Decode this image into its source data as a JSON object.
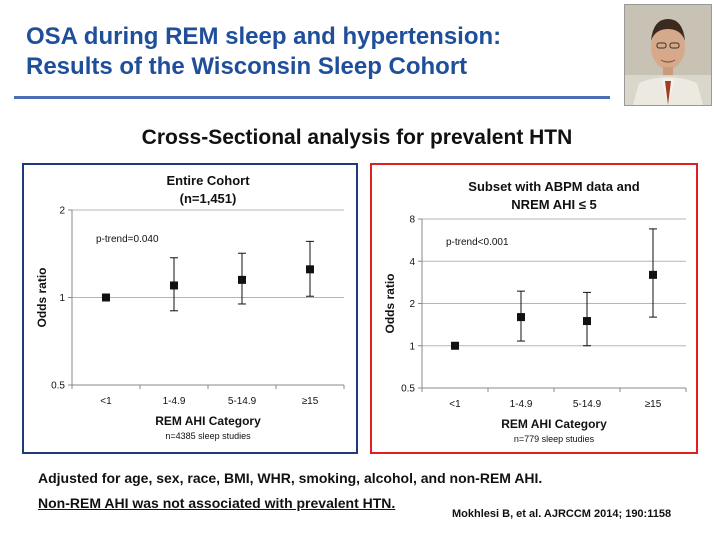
{
  "slide": {
    "title_line1": "OSA during REM sleep and hypertension:",
    "title_line2": "Results of the Wisconsin Sleep Cohort",
    "subtitle": "Cross-Sectional analysis for prevalent HTN",
    "note1": "Adjusted for age, sex, race, BMI, WHR, smoking, alcohol, and non-REM AHI.",
    "note2": "Non-REM AHI was not associated with prevalent HTN.",
    "citation": "Mokhlesi B, et al. AJRCCM 2014; 190:1158"
  },
  "chart_data": [
    {
      "type": "scatter",
      "title_lines": [
        "Entire Cohort",
        "(n=1,451)"
      ],
      "xlabel": "REM AHI Category",
      "ylabel": "Odds ratio",
      "footnote": "n=4385 sleep studies",
      "annotation": "p-trend=0.040",
      "categories": [
        "<1",
        "1-4.9",
        "5-14.9",
        "≥15"
      ],
      "values": [
        1.0,
        1.1,
        1.15,
        1.25
      ],
      "ci_low": [
        null,
        0.9,
        0.95,
        1.01
      ],
      "ci_high": [
        null,
        1.37,
        1.42,
        1.56
      ],
      "y_scale": "log",
      "ylim": [
        0.5,
        2
      ],
      "y_ticks": [
        0.5,
        1,
        2
      ],
      "grid": true
    },
    {
      "type": "scatter",
      "title_lines": [
        "Subset with ABPM data and",
        "NREM AHI ≤ 5"
      ],
      "xlabel": "REM AHI Category",
      "ylabel": "Odds ratio",
      "footnote": "n=779 sleep studies",
      "annotation": "p-trend<0.001",
      "categories": [
        "<1",
        "1-4.9",
        "5-14.9",
        "≥15"
      ],
      "values": [
        1.0,
        1.6,
        1.5,
        3.2
      ],
      "ci_low": [
        null,
        1.08,
        1.0,
        1.6
      ],
      "ci_high": [
        null,
        2.45,
        2.4,
        6.8
      ],
      "y_scale": "log",
      "ylim": [
        0.5,
        8
      ],
      "y_ticks": [
        0.5,
        1,
        2,
        4,
        8
      ],
      "grid": true
    }
  ]
}
